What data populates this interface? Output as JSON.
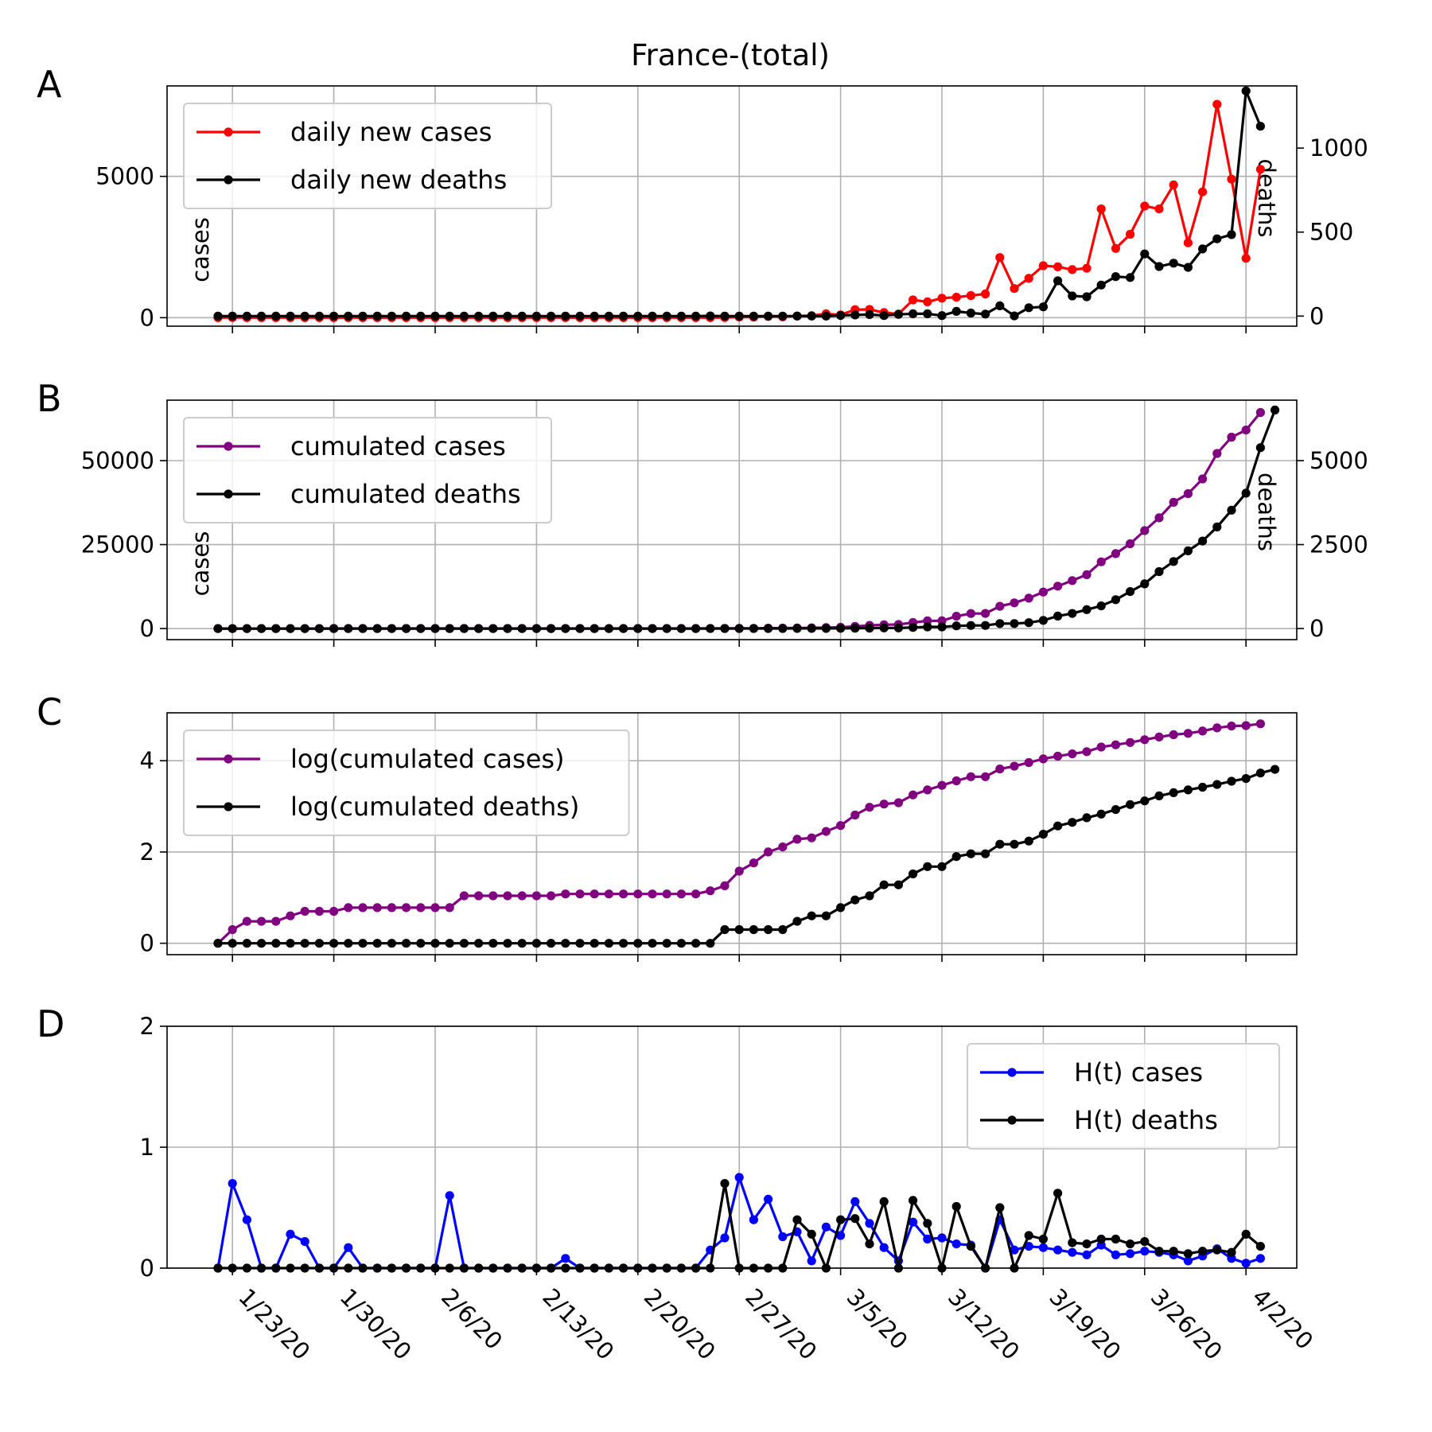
{
  "figure": {
    "title": "France-(total)"
  },
  "chart_data": [
    {
      "panel": "A",
      "type": "line",
      "x": [
        "1/22/20",
        "1/23/20",
        "1/24/20",
        "1/25/20",
        "1/26/20",
        "1/27/20",
        "1/28/20",
        "1/29/20",
        "1/30/20",
        "1/31/20",
        "2/1/20",
        "2/2/20",
        "2/3/20",
        "2/4/20",
        "2/5/20",
        "2/6/20",
        "2/7/20",
        "2/8/20",
        "2/9/20",
        "2/10/20",
        "2/11/20",
        "2/12/20",
        "2/13/20",
        "2/14/20",
        "2/15/20",
        "2/16/20",
        "2/17/20",
        "2/18/20",
        "2/19/20",
        "2/20/20",
        "2/21/20",
        "2/22/20",
        "2/23/20",
        "2/24/20",
        "2/25/20",
        "2/26/20",
        "2/27/20",
        "2/28/20",
        "2/29/20",
        "3/1/20",
        "3/2/20",
        "3/3/20",
        "3/4/20",
        "3/5/20",
        "3/6/20",
        "3/7/20",
        "3/8/20",
        "3/9/20",
        "3/10/20",
        "3/11/20",
        "3/12/20",
        "3/13/20",
        "3/14/20",
        "3/15/20",
        "3/16/20",
        "3/17/20",
        "3/18/20",
        "3/19/20",
        "3/20/20",
        "3/21/20",
        "3/22/20",
        "3/23/20",
        "3/24/20",
        "3/25/20",
        "3/26/20",
        "3/27/20",
        "3/28/20",
        "3/29/20",
        "3/30/20",
        "3/31/20",
        "4/1/20",
        "4/2/20",
        "4/3/20"
      ],
      "xtick_labels": [
        "1/23/20",
        "1/30/20",
        "2/6/20",
        "2/13/20",
        "2/20/20",
        "2/27/20",
        "3/5/20",
        "3/12/20",
        "3/19/20",
        "3/26/20",
        "4/2/20"
      ],
      "y_left_label": "cases",
      "y_right_label": "deaths",
      "ylim_left": [
        -300,
        8200
      ],
      "ylim_right": [
        -60,
        1370
      ],
      "yticks_left": [
        0,
        5000
      ],
      "yticks_right": [
        0,
        500,
        1000
      ],
      "legend": "upper left",
      "grid": true,
      "series": [
        {
          "name": "daily new cases",
          "axis": "left",
          "color": "#ff0000",
          "values": [
            0,
            3,
            0,
            0,
            0,
            1,
            0,
            0,
            0,
            0,
            0,
            0,
            0,
            0,
            0,
            0,
            0,
            0,
            0,
            0,
            0,
            0,
            0,
            0,
            0,
            0,
            0,
            0,
            0,
            0,
            0,
            0,
            0,
            0,
            2,
            4,
            20,
            19,
            43,
            30,
            61,
            73,
            138,
            100,
            285,
            290,
            180,
            130,
            630,
            560,
            690,
            725,
            785,
            840,
            2130,
            1030,
            1395,
            1840,
            1800,
            1700,
            1750,
            3850,
            2450,
            2950,
            3950,
            3850,
            4700,
            2650,
            4450,
            7550,
            4900,
            2100,
            5250
          ]
        },
        {
          "name": "daily new deaths",
          "axis": "right",
          "color": "#000000",
          "values": [
            0,
            0,
            0,
            0,
            0,
            0,
            0,
            0,
            0,
            0,
            0,
            0,
            0,
            0,
            0,
            0,
            0,
            0,
            0,
            0,
            0,
            0,
            0,
            0,
            0,
            0,
            0,
            0,
            0,
            0,
            0,
            0,
            0,
            0,
            1,
            0,
            0,
            0,
            0,
            0,
            0,
            0,
            0,
            4,
            7,
            9,
            3,
            10,
            14,
            14,
            3,
            28,
            18,
            12,
            61,
            1,
            50,
            55,
            210,
            120,
            115,
            185,
            235,
            230,
            370,
            295,
            315,
            290,
            400,
            460,
            485,
            1340,
            1130
          ]
        }
      ]
    },
    {
      "panel": "B",
      "type": "line",
      "y_left_label": "cases",
      "y_right_label": "deaths",
      "ylim_left": [
        -3300,
        68000
      ],
      "ylim_right": [
        -330,
        6800
      ],
      "yticks_left": [
        0,
        25000,
        50000
      ],
      "yticks_right": [
        0,
        2500,
        5000
      ],
      "legend": "upper left",
      "grid": true,
      "series": [
        {
          "name": "cumulated cases",
          "axis": "left",
          "color": "#800080",
          "values": [
            0,
            3,
            3,
            3,
            3,
            4,
            4,
            4,
            5,
            5,
            6,
            6,
            6,
            6,
            6,
            6,
            6,
            11,
            11,
            11,
            11,
            11,
            11,
            11,
            12,
            12,
            12,
            12,
            12,
            12,
            12,
            12,
            12,
            12,
            14,
            18,
            38,
            57,
            100,
            130,
            191,
            204,
            285,
            377,
            653,
            949,
            1126,
            1209,
            1784,
            2281,
            2281,
            3661,
            4469,
            4499,
            6633,
            7652,
            9043,
            10871,
            12612,
            14282,
            16018,
            19856,
            22304,
            25233,
            29155,
            32964,
            37575,
            40174,
            44550,
            52128,
            56989,
            59105,
            64338
          ]
        },
        {
          "name": "cumulated deaths",
          "axis": "right",
          "color": "#000000",
          "values": [
            0,
            0,
            0,
            0,
            0,
            0,
            0,
            0,
            0,
            0,
            0,
            0,
            0,
            0,
            0,
            0,
            0,
            0,
            0,
            0,
            0,
            0,
            0,
            0,
            0,
            0,
            0,
            0,
            0,
            0,
            0,
            0,
            0,
            0,
            1,
            1,
            1,
            2,
            2,
            2,
            3,
            4,
            4,
            6,
            9,
            11,
            19,
            19,
            33,
            48,
            48,
            79,
            91,
            91,
            148,
            148,
            175,
            244,
            372,
            450,
            562,
            674,
            860,
            1100,
            1331,
            1696,
            1995,
            2314,
            2606,
            3024,
            3523,
            4032,
            5387,
            6507
          ]
        }
      ]
    },
    {
      "panel": "C",
      "type": "line",
      "ylim": [
        -0.25,
        5.05
      ],
      "yticks": [
        0,
        2,
        4
      ],
      "legend": "upper left",
      "grid": true,
      "series": [
        {
          "name": "log(cumulated cases)",
          "color": "#800080",
          "values": [
            0,
            0.3,
            0.48,
            0.48,
            0.48,
            0.6,
            0.7,
            0.7,
            0.7,
            0.78,
            0.78,
            0.78,
            0.78,
            0.78,
            0.78,
            0.78,
            0.78,
            1.04,
            1.04,
            1.04,
            1.04,
            1.04,
            1.04,
            1.04,
            1.08,
            1.08,
            1.08,
            1.08,
            1.08,
            1.08,
            1.08,
            1.08,
            1.08,
            1.08,
            1.15,
            1.26,
            1.58,
            1.76,
            2.0,
            2.11,
            2.28,
            2.31,
            2.45,
            2.58,
            2.81,
            2.98,
            3.05,
            3.08,
            3.25,
            3.36,
            3.46,
            3.56,
            3.65,
            3.65,
            3.82,
            3.88,
            3.96,
            4.04,
            4.1,
            4.15,
            4.2,
            4.3,
            4.35,
            4.4,
            4.46,
            4.52,
            4.57,
            4.6,
            4.65,
            4.72,
            4.76,
            4.77,
            4.81
          ]
        },
        {
          "name": "log(cumulated deaths)",
          "color": "#000000",
          "values": [
            0,
            0,
            0,
            0,
            0,
            0,
            0,
            0,
            0,
            0,
            0,
            0,
            0,
            0,
            0,
            0,
            0,
            0,
            0,
            0,
            0,
            0,
            0,
            0,
            0,
            0,
            0,
            0,
            0,
            0,
            0,
            0,
            0,
            0,
            0,
            0.3,
            0.3,
            0.3,
            0.3,
            0.3,
            0.48,
            0.6,
            0.6,
            0.78,
            0.95,
            1.04,
            1.28,
            1.28,
            1.52,
            1.68,
            1.68,
            1.9,
            1.96,
            1.96,
            2.17,
            2.17,
            2.24,
            2.39,
            2.57,
            2.65,
            2.75,
            2.83,
            2.93,
            3.04,
            3.12,
            3.23,
            3.3,
            3.36,
            3.42,
            3.48,
            3.55,
            3.61,
            3.73,
            3.81
          ]
        }
      ]
    },
    {
      "panel": "D",
      "type": "line",
      "ylim": [
        0,
        2
      ],
      "yticks": [
        0,
        1,
        2
      ],
      "legend": "upper right",
      "grid": true,
      "series": [
        {
          "name": "H(t) cases",
          "color": "#0000ff",
          "values": [
            0,
            0.7,
            0.4,
            0,
            0,
            0.28,
            0.22,
            0,
            0,
            0.17,
            0,
            0,
            0,
            0,
            0,
            0,
            0.6,
            0,
            0,
            0,
            0,
            0,
            0,
            0,
            0.08,
            0,
            0,
            0,
            0,
            0,
            0,
            0,
            0,
            0,
            0.15,
            0.25,
            0.75,
            0.4,
            0.57,
            0.26,
            0.3,
            0.06,
            0.34,
            0.27,
            0.55,
            0.37,
            0.17,
            0.06,
            0.38,
            0.24,
            0.25,
            0.2,
            0.19,
            0,
            0.4,
            0.15,
            0.18,
            0.17,
            0.15,
            0.13,
            0.11,
            0.19,
            0.11,
            0.12,
            0.14,
            0.13,
            0.11,
            0.06,
            0.1,
            0.16,
            0.08,
            0.04,
            0.08
          ]
        },
        {
          "name": "H(t) deaths",
          "color": "#000000",
          "values": [
            0,
            0,
            0,
            0,
            0,
            0,
            0,
            0,
            0,
            0,
            0,
            0,
            0,
            0,
            0,
            0,
            0,
            0,
            0,
            0,
            0,
            0,
            0,
            0,
            0,
            0,
            0,
            0,
            0,
            0,
            0,
            0,
            0,
            0,
            0,
            0.7,
            0,
            0,
            0,
            0,
            0.4,
            0.28,
            0,
            0.4,
            0.41,
            0.2,
            0.55,
            0,
            0.56,
            0.37,
            0,
            0.51,
            0.18,
            0,
            0.5,
            0,
            0.27,
            0.24,
            0.62,
            0.21,
            0.2,
            0.24,
            0.24,
            0.2,
            0.22,
            0.14,
            0.14,
            0.12,
            0.14,
            0.15,
            0.13,
            0.28,
            0.18
          ]
        }
      ]
    }
  ]
}
